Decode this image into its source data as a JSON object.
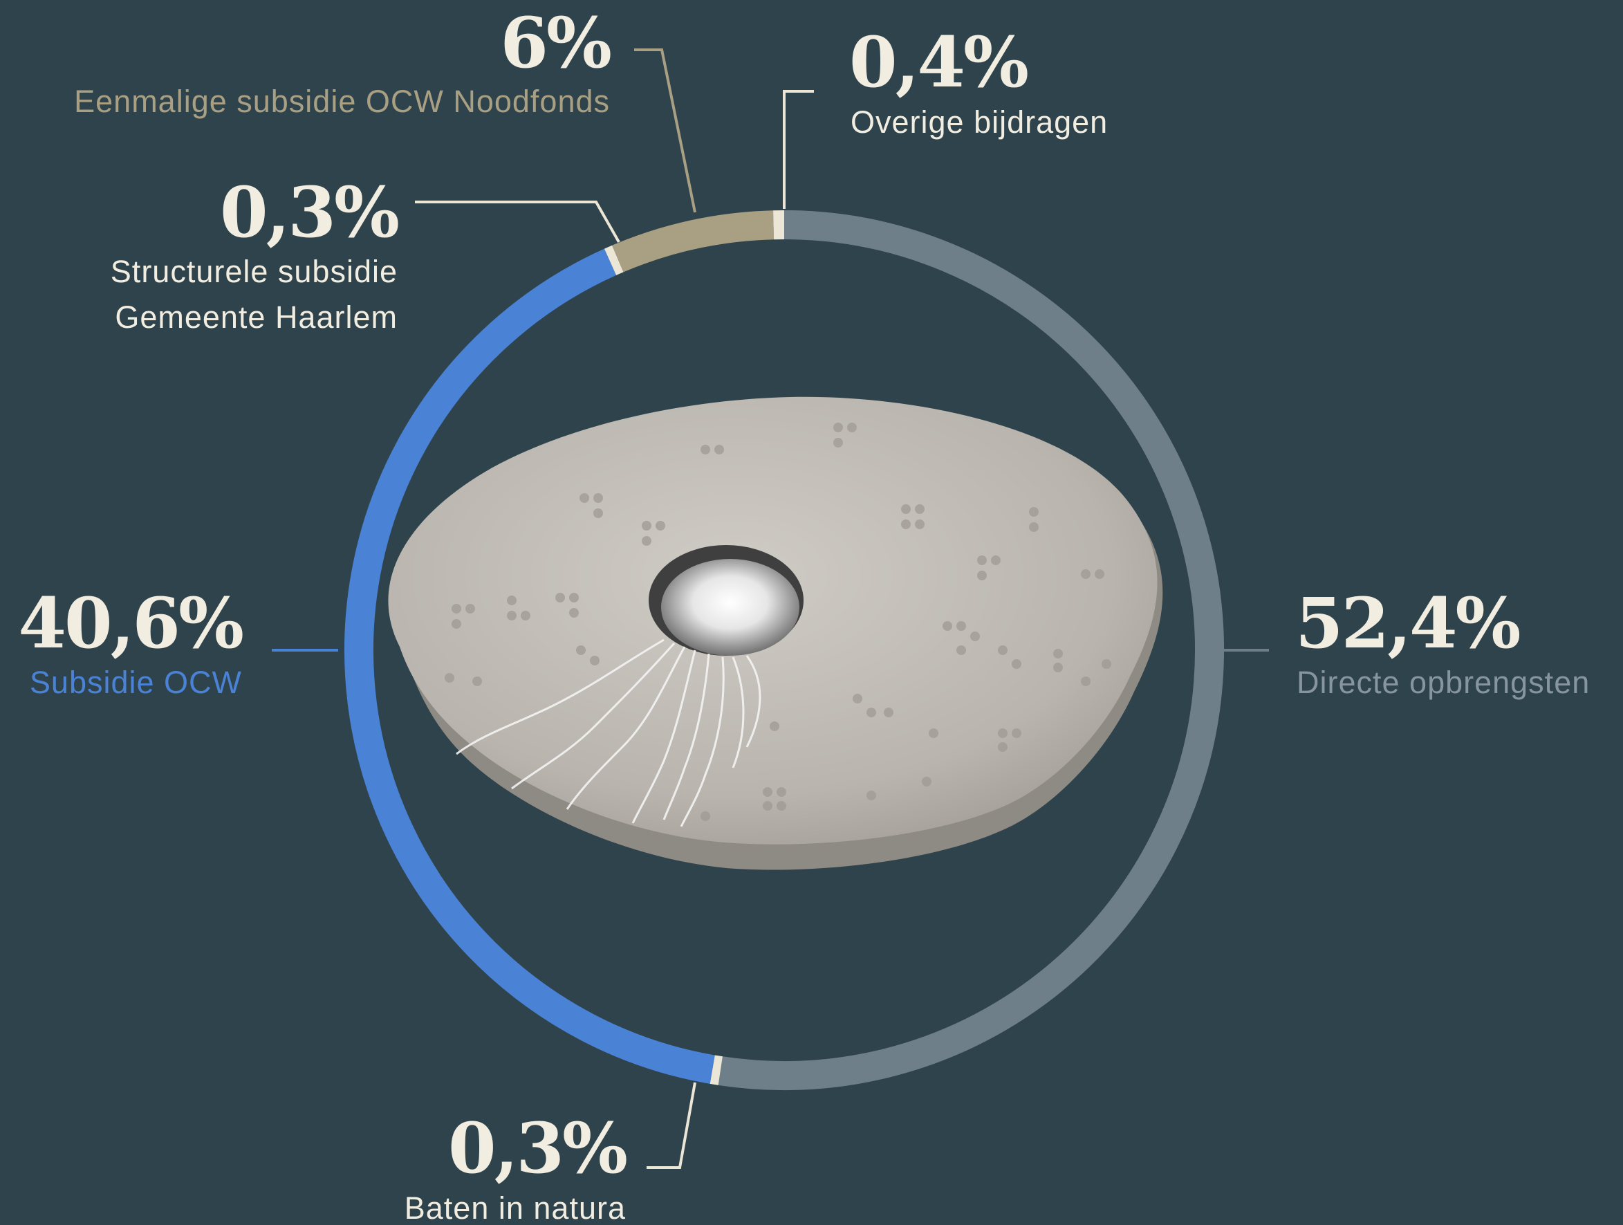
{
  "chart_data": {
    "type": "pie",
    "style": "donut",
    "title": "",
    "unit": "%",
    "slices": [
      {
        "key": "directe",
        "label": "Directe opbrengsten",
        "value": 52.4,
        "value_label": "52,4%",
        "color": "#6e7f89"
      },
      {
        "key": "natura",
        "label": "Baten in natura",
        "value": 0.3,
        "value_label": "0,3%",
        "color": "#ece6d6"
      },
      {
        "key": "ocw",
        "label": "Subsidie OCW",
        "value": 40.6,
        "value_label": "40,6%",
        "color": "#4a82d6"
      },
      {
        "key": "gemeente",
        "label": "Structurele subsidie Gemeente Haarlem",
        "label_lines": [
          "Structurele subsidie",
          "Gemeente Haarlem"
        ],
        "value": 0.3,
        "value_label": "0,3%",
        "color": "#ece6d6"
      },
      {
        "key": "noodfonds",
        "label": "Eenmalige subsidie OCW Noodfonds",
        "value": 6,
        "value_label": "6%",
        "color": "#a9a084"
      },
      {
        "key": "overige",
        "label": "Overige bijdragen",
        "value": 0.4,
        "value_label": "0,4%",
        "color": "#ece6d6"
      }
    ]
  },
  "colors": {
    "background": "#2f434c",
    "value_text": "#f2ede1",
    "label_light": "#f2ede1",
    "label_ocw": "#4a82d6",
    "label_noodfonds": "#a9a084",
    "label_directe": "#8795a0"
  },
  "center_image": {
    "icon": "silver-award-sculpture-icon"
  }
}
